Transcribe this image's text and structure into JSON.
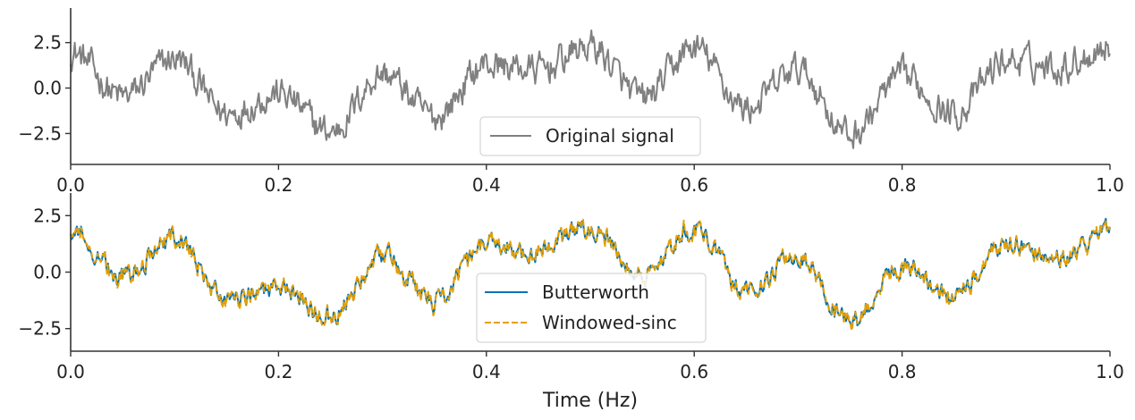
{
  "chart_data": [
    {
      "type": "line",
      "title": "",
      "xlabel": "",
      "ylabel": "",
      "xlim": [
        0.0,
        1.0
      ],
      "ylim": [
        -4.2,
        4.4
      ],
      "xticks": [
        0.0,
        0.2,
        0.4,
        0.6,
        0.8,
        1.0
      ],
      "xtick_labels": [
        "0.0",
        "0.2",
        "0.4",
        "0.6",
        "0.8",
        "1.0"
      ],
      "yticks": [
        -2.5,
        0.0,
        2.5
      ],
      "ytick_labels": [
        "−2.5",
        "0.0",
        "2.5"
      ],
      "legend_position": "lower-center",
      "grid": false,
      "series": [
        {
          "name": "Original signal",
          "color": "#808080",
          "style": "solid",
          "sample_rate": 1000,
          "trend": {
            "x": [
              0.0,
              0.05,
              0.1,
              0.15,
              0.2,
              0.25,
              0.3,
              0.35,
              0.4,
              0.45,
              0.5,
              0.55,
              0.6,
              0.65,
              0.7,
              0.75,
              0.8,
              0.85,
              0.9,
              0.95,
              1.0
            ],
            "y": [
              2.0,
              -0.5,
              1.6,
              -1.4,
              -0.3,
              -2.4,
              0.8,
              -1.6,
              1.3,
              1.0,
              2.3,
              -0.6,
              2.2,
              -1.1,
              1.0,
              -2.6,
              0.6,
              -1.4,
              1.5,
              1.2,
              2.3
            ]
          },
          "noise_amplitude": 0.9
        }
      ]
    },
    {
      "type": "line",
      "title": "",
      "xlabel": "Time (Hz)",
      "ylabel": "",
      "xlim": [
        0.0,
        1.0
      ],
      "ylim": [
        -3.5,
        3.5
      ],
      "xticks": [
        0.0,
        0.2,
        0.4,
        0.6,
        0.8,
        1.0
      ],
      "xtick_labels": [
        "0.0",
        "0.2",
        "0.4",
        "0.6",
        "0.8",
        "1.0"
      ],
      "yticks": [
        -2.5,
        0.0,
        2.5
      ],
      "ytick_labels": [
        "−2.5",
        "0.0",
        "2.5"
      ],
      "legend_position": "lower-center",
      "grid": false,
      "series": [
        {
          "name": "Butterworth",
          "color": "#0072b2",
          "style": "solid",
          "sample_rate": 1000,
          "trend": {
            "x": [
              0.0,
              0.05,
              0.1,
              0.15,
              0.2,
              0.25,
              0.3,
              0.35,
              0.4,
              0.45,
              0.5,
              0.55,
              0.6,
              0.65,
              0.7,
              0.75,
              0.8,
              0.85,
              0.9,
              0.95,
              1.0
            ],
            "y": [
              2.0,
              -0.2,
              1.5,
              -1.2,
              -0.6,
              -2.0,
              0.7,
              -1.3,
              1.2,
              0.9,
              2.0,
              -0.2,
              1.9,
              -0.8,
              0.7,
              -2.2,
              0.3,
              -1.1,
              1.3,
              0.6,
              1.9
            ]
          },
          "noise_amplitude": 0.45
        },
        {
          "name": "Windowed-sinc",
          "color": "#e69f00",
          "style": "dashed",
          "sample_rate": 1000,
          "trend": {
            "x": [
              0.0,
              0.05,
              0.1,
              0.15,
              0.2,
              0.25,
              0.3,
              0.35,
              0.4,
              0.45,
              0.5,
              0.55,
              0.6,
              0.65,
              0.7,
              0.75,
              0.8,
              0.85,
              0.9,
              0.95,
              1.0
            ],
            "y": [
              2.0,
              -0.2,
              1.5,
              -1.2,
              -0.6,
              -2.0,
              0.7,
              -1.3,
              1.2,
              0.9,
              2.0,
              -0.2,
              1.9,
              -0.8,
              0.7,
              -2.2,
              0.3,
              -1.1,
              1.3,
              0.6,
              1.9
            ]
          },
          "noise_amplitude": 0.45
        }
      ]
    }
  ]
}
